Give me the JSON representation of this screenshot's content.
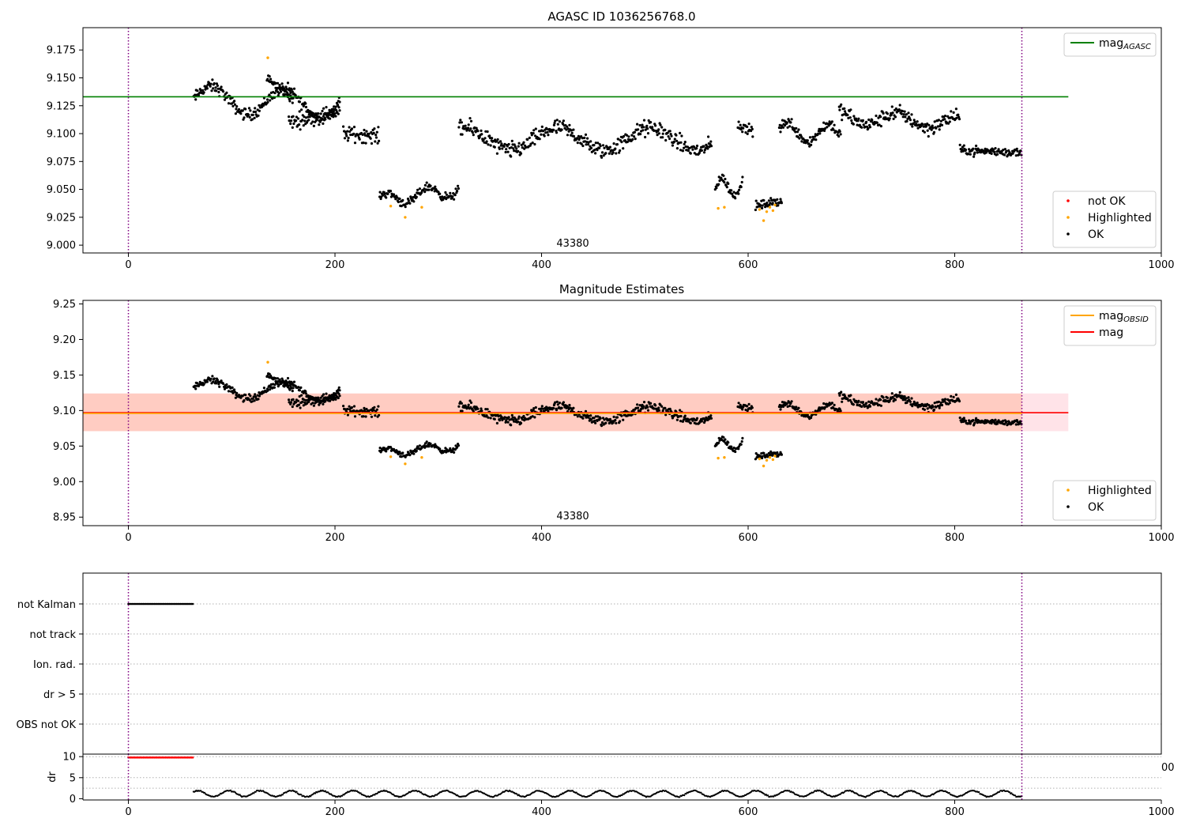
{
  "chart_data": [
    {
      "type": "scatter",
      "title": "AGASC ID 1036256768.0",
      "xlim": [
        -44,
        1000
      ],
      "ylim": [
        8.993,
        9.195
      ],
      "xticks": [
        0,
        200,
        400,
        600,
        800,
        1000
      ],
      "yticks": [
        9.0,
        9.025,
        9.05,
        9.075,
        9.1,
        9.125,
        9.15,
        9.175
      ],
      "ytick_labels": [
        "9.000",
        "9.025",
        "9.050",
        "9.075",
        "9.100",
        "9.125",
        "9.150",
        "9.175"
      ],
      "annotation": "43380",
      "legends": [
        {
          "position": "top-right",
          "entries": [
            {
              "label": "mag",
              "sub": "AGASC",
              "color": "#008000",
              "kind": "line"
            }
          ]
        },
        {
          "position": "bottom-right",
          "entries": [
            {
              "label": "not OK",
              "color": "#ff0000",
              "kind": "marker"
            },
            {
              "label": "Highlighted",
              "color": "#ffa500",
              "kind": "marker"
            },
            {
              "label": "OK",
              "color": "#000000",
              "kind": "marker"
            }
          ]
        }
      ],
      "hlines": [
        {
          "y": 9.133,
          "x0": -44,
          "x1": 910,
          "color": "#008000"
        }
      ],
      "vlines": [
        {
          "x": 0,
          "color": "#800080",
          "style": "dotted"
        },
        {
          "x": 865,
          "color": "#800080",
          "style": "dotted"
        }
      ],
      "segments": [
        {
          "x": [
            63,
            205
          ],
          "y": [
            9.131,
            9.126
          ],
          "wave": [
            0.012,
            0,
            70
          ],
          "noise": 0.008
        },
        {
          "x": [
            134,
            160
          ],
          "y": [
            9.15,
            9.13
          ],
          "noise": 0.006
        },
        {
          "x": [
            155,
            205
          ],
          "y": [
            9.11,
            9.12
          ],
          "noise": 0.01
        },
        {
          "x": [
            208,
            243
          ],
          "y": [
            9.1,
            9.098
          ],
          "noise": 0.01
        },
        {
          "x": [
            243,
            320
          ],
          "y": [
            9.04,
            9.05
          ],
          "wave": [
            0.006,
            0.5,
            40
          ],
          "noise": 0.006
        },
        {
          "x": [
            320,
            565
          ],
          "y": [
            9.095,
            9.095
          ],
          "wave": [
            0.01,
            1.2,
            90
          ],
          "noise": 0.011
        },
        {
          "x": [
            568,
            595
          ],
          "y": [
            9.05,
            9.055
          ],
          "wave": [
            0.009,
            0,
            25
          ],
          "noise": 0.006
        },
        {
          "x": [
            590,
            605
          ],
          "y": [
            9.108,
            9.102
          ],
          "noise": 0.007
        },
        {
          "x": [
            607,
            633
          ],
          "y": [
            9.035,
            9.04
          ],
          "noise": 0.006
        },
        {
          "x": [
            630,
            690
          ],
          "y": [
            9.102,
            9.1
          ],
          "wave": [
            0.008,
            0.3,
            40
          ],
          "noise": 0.008
        },
        {
          "x": [
            688,
            805
          ],
          "y": [
            9.115,
            9.11
          ],
          "wave": [
            0.006,
            2.0,
            60
          ],
          "noise": 0.01
        },
        {
          "x": [
            805,
            865
          ],
          "y": [
            9.085,
            9.083
          ],
          "noise": 0.006
        }
      ],
      "highlighted": [
        [
          135,
          9.168
        ],
        [
          254,
          9.035
        ],
        [
          268,
          9.025
        ],
        [
          284,
          9.034
        ],
        [
          571,
          9.033
        ],
        [
          577,
          9.034
        ],
        [
          611,
          9.032
        ],
        [
          615,
          9.022
        ],
        [
          618,
          9.03
        ],
        [
          621,
          9.034
        ],
        [
          624,
          9.031
        ],
        [
          626,
          9.036
        ]
      ],
      "not_ok": []
    },
    {
      "type": "scatter",
      "title": "Magnitude Estimates",
      "xlim": [
        -44,
        1000
      ],
      "ylim": [
        8.938,
        9.255
      ],
      "xticks": [
        0,
        200,
        400,
        600,
        800,
        1000
      ],
      "yticks": [
        8.95,
        9.0,
        9.05,
        9.1,
        9.15,
        9.2,
        9.25
      ],
      "ytick_labels": [
        "8.95",
        "9.00",
        "9.05",
        "9.10",
        "9.15",
        "9.20",
        "9.25"
      ],
      "annotation": "43380",
      "legends": [
        {
          "position": "top-right",
          "entries": [
            {
              "label": "mag",
              "sub": "OBSID",
              "color": "#ffa500",
              "kind": "line"
            },
            {
              "label": "mag",
              "sub": "",
              "color": "#ff0000",
              "kind": "line"
            }
          ]
        },
        {
          "position": "bottom-right",
          "entries": [
            {
              "label": "Highlighted",
              "color": "#ffa500",
              "kind": "marker"
            },
            {
              "label": "OK",
              "color": "#000000",
              "kind": "marker"
            }
          ]
        }
      ],
      "bands": [
        {
          "y0": 9.071,
          "y1": 9.124,
          "x0": -44,
          "x1": 910,
          "color": "#ffc0cb",
          "opacity": 0.45
        },
        {
          "y0": 9.071,
          "y1": 9.124,
          "x0": -44,
          "x1": 865,
          "color": "#ffa07a",
          "opacity": 0.35
        }
      ],
      "hlines": [
        {
          "y": 9.097,
          "x0": -44,
          "x1": 910,
          "color": "#ff0000"
        },
        {
          "y": 9.096,
          "x0": -44,
          "x1": 865,
          "color": "#ffa500"
        }
      ],
      "vlines": [
        {
          "x": 0,
          "color": "#800080",
          "style": "dotted"
        },
        {
          "x": 865,
          "color": "#800080",
          "style": "dotted"
        }
      ],
      "segments": "same-as-panel-1",
      "highlighted": "same-as-panel-1"
    },
    {
      "type": "scatter",
      "xlim": [
        -44,
        1000
      ],
      "categories": [
        "not Kalman",
        "not track",
        "Ion. rad.",
        "dr > 5",
        "OBS not OK"
      ],
      "flags": [
        {
          "label": "not Kalman",
          "x": [
            0,
            63
          ]
        }
      ],
      "vlines": [
        {
          "x": 0,
          "color": "#800080",
          "style": "dotted"
        },
        {
          "x": 865,
          "color": "#800080",
          "style": "dotted"
        }
      ]
    },
    {
      "type": "scatter",
      "ylabel": "dr",
      "xlim": [
        -44,
        1000
      ],
      "ylim": [
        -0.3,
        10.6
      ],
      "xticks": [
        0,
        200,
        400,
        600,
        800,
        1000
      ],
      "yticks": [
        0,
        5,
        10
      ],
      "ytick_labels": [
        "0",
        "5",
        "10"
      ],
      "hlines": [
        {
          "y": 2.5,
          "style": "dotted"
        },
        {
          "y": 5,
          "style": "dotted"
        },
        {
          "y": 10,
          "style": "dotted"
        }
      ],
      "vlines": [
        {
          "x": 0,
          "color": "#800080",
          "style": "dotted"
        },
        {
          "x": 865,
          "color": "#800080",
          "style": "dotted"
        }
      ],
      "red_points": {
        "x": [
          0,
          63
        ],
        "y": 9.8
      },
      "dr_series": {
        "x": [
          63,
          865
        ],
        "base": 1.2,
        "amp": 0.7,
        "period": 30
      },
      "stray_label": "00"
    }
  ]
}
